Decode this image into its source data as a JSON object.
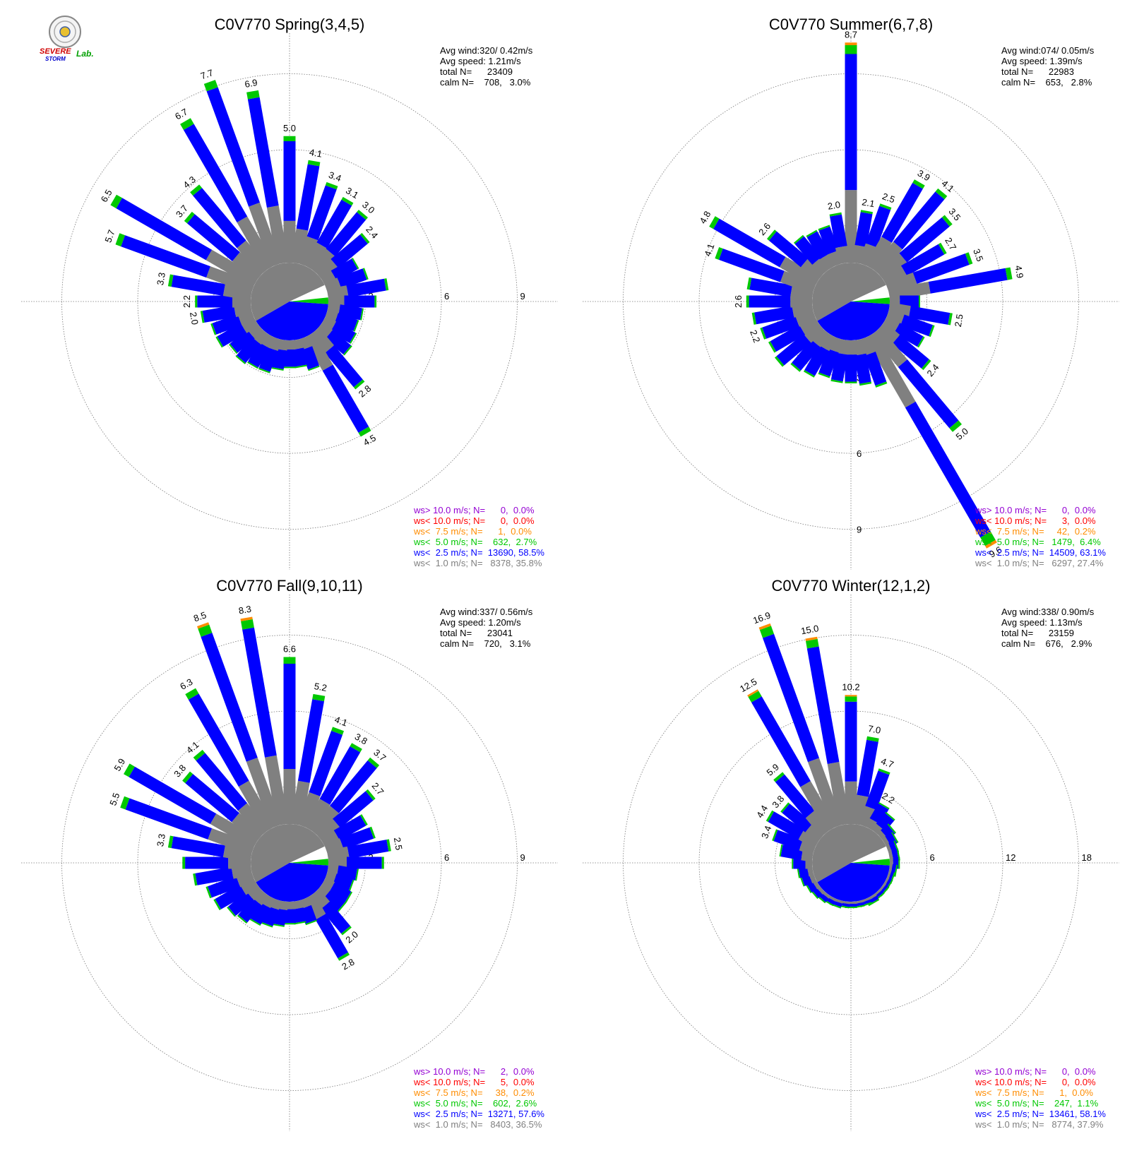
{
  "logo": {
    "line1": "SEVERE",
    "line2": "STORM",
    "line3": "Lab."
  },
  "colors": {
    "gray": "#808080",
    "blue": "#0000ff",
    "green": "#00c800",
    "orange": "#ff8c00",
    "red": "#ff0000",
    "purple": "#9400d3",
    "grid": "#777777"
  },
  "chart_data": [
    {
      "type": "polar-bar",
      "title": "C0V770 Spring(3,4,5)",
      "stats": [
        "Avg wind:320/ 0.42m/s",
        "Avg speed: 1.21m/s",
        "total N=      23409",
        "calm N=    708,   3.0%"
      ],
      "rings": [
        "3",
        "6",
        "9"
      ],
      "rmax": 9,
      "ring_label_side": "east",
      "sectors": 36,
      "totals": [
        5.0,
        4.1,
        3.4,
        3.1,
        3.0,
        2.4,
        1.5,
        1.7,
        2.4,
        1.9,
        1.4,
        1.3,
        1.4,
        1.5,
        2.8,
        4.5,
        1.3,
        1.1,
        1.1,
        1.2,
        1.4,
        1.4,
        1.5,
        1.4,
        1.7,
        1.7,
        2.0,
        2.2,
        3.3,
        5.7,
        6.5,
        3.7,
        4.3,
        6.7,
        7.7,
        6.9
      ],
      "labeled_sectors": [
        0,
        1,
        2,
        3,
        4,
        5,
        14,
        15,
        26,
        27,
        28,
        29,
        30,
        31,
        32,
        33,
        34,
        35
      ],
      "legend": [
        {
          "text": "ws> 10.0 m/s; N=      0,  0.0%",
          "color": "#9400d3"
        },
        {
          "text": "ws< 10.0 m/s; N=      0,  0.0%",
          "color": "#ff0000"
        },
        {
          "text": "ws<  7.5 m/s; N=      1,  0.0%",
          "color": "#ff8c00"
        },
        {
          "text": "ws<  5.0 m/s; N=    632,  2.7%",
          "color": "#00c800"
        },
        {
          "text": "ws<  2.5 m/s; N=  13690, 58.5%",
          "color": "#0000ff"
        },
        {
          "text": "ws<  1.0 m/s; N=   8378, 35.8%",
          "color": "#808080"
        }
      ]
    },
    {
      "type": "polar-bar",
      "title": "C0V770 Summer(6,7,8)",
      "stats": [
        "Avg wind:074/ 0.05m/s",
        "Avg speed: 1.39m/s",
        "total N=      22983",
        "calm N=    653,   2.8%"
      ],
      "rings": [
        "3",
        "6",
        "9"
      ],
      "rmax": 9,
      "ring_label_side": "south",
      "sectors": 36,
      "totals": [
        8.7,
        2.1,
        2.5,
        3.9,
        4.1,
        3.5,
        2.7,
        3.5,
        4.9,
        1.2,
        2.5,
        1.9,
        1.7,
        2.4,
        5.0,
        9.6,
        2.0,
        1.8,
        1.7,
        1.7,
        1.6,
        1.8,
        1.9,
        2.2,
        2.1,
        2.2,
        2.4,
        2.6,
        2.6,
        4.1,
        4.8,
        2.6,
        1.7,
        1.6,
        1.6,
        2.0
      ],
      "labeled_sectors": [
        0,
        1,
        2,
        3,
        4,
        5,
        6,
        7,
        8,
        10,
        13,
        14,
        15,
        25,
        27,
        29,
        30,
        31,
        35
      ],
      "legend": [
        {
          "text": "ws> 10.0 m/s; N=      0,  0.0%",
          "color": "#9400d3"
        },
        {
          "text": "ws< 10.0 m/s; N=      3,  0.0%",
          "color": "#ff0000"
        },
        {
          "text": "ws<  7.5 m/s; N=     42,  0.2%",
          "color": "#ff8c00"
        },
        {
          "text": "ws<  5.0 m/s; N=   1479,  6.4%",
          "color": "#00c800"
        },
        {
          "text": "ws<  2.5 m/s; N=  14509, 63.1%",
          "color": "#0000ff"
        },
        {
          "text": "ws<  1.0 m/s; N=   6297, 27.4%",
          "color": "#808080"
        }
      ]
    },
    {
      "type": "polar-bar",
      "title": "C0V770 Fall(9,10,11)",
      "stats": [
        "Avg wind:337/ 0.56m/s",
        "Avg speed: 1.20m/s",
        "total N=      23041",
        "calm N=    720,   3.1%"
      ],
      "rings": [
        "3",
        "6",
        "9"
      ],
      "rmax": 9,
      "ring_label_side": "east",
      "sectors": 36,
      "totals": [
        6.6,
        5.2,
        4.1,
        3.8,
        3.7,
        2.7,
        1.9,
        2.0,
        2.5,
        2.2,
        1.2,
        1.1,
        1.2,
        1.2,
        2.0,
        2.8,
        1.0,
        0.9,
        0.9,
        1.0,
        1.1,
        1.2,
        1.4,
        1.5,
        1.8,
        1.9,
        2.3,
        2.7,
        3.3,
        5.5,
        5.9,
        3.8,
        4.1,
        6.3,
        8.5,
        8.3
      ],
      "labeled_sectors": [
        0,
        1,
        2,
        3,
        4,
        5,
        8,
        14,
        15,
        28,
        29,
        30,
        31,
        32,
        33,
        34,
        35
      ],
      "legend": [
        {
          "text": "ws> 10.0 m/s; N=      2,  0.0%",
          "color": "#9400d3"
        },
        {
          "text": "ws< 10.0 m/s; N=      5,  0.0%",
          "color": "#ff0000"
        },
        {
          "text": "ws<  7.5 m/s; N=     38,  0.2%",
          "color": "#ff8c00"
        },
        {
          "text": "ws<  5.0 m/s; N=    602,  2.6%",
          "color": "#00c800"
        },
        {
          "text": "ws<  2.5 m/s; N=  13271, 57.6%",
          "color": "#0000ff"
        },
        {
          "text": "ws<  1.0 m/s; N=   8403, 36.5%",
          "color": "#808080"
        }
      ]
    },
    {
      "type": "polar-bar",
      "title": "C0V770 Winter(12,1,2)",
      "stats": [
        "Avg wind:338/ 0.90m/s",
        "Avg speed: 1.13m/s",
        "total N=      23159",
        "calm N=    676,   2.9%"
      ],
      "rings": [
        "6",
        "12",
        "18"
      ],
      "rmax": 18,
      "ring_label_side": "east",
      "sectors": 36,
      "totals": [
        10.2,
        7.0,
        4.7,
        2.2,
        1.8,
        1.2,
        1.0,
        0.8,
        0.8,
        0.8,
        0.6,
        0.5,
        0.5,
        0.5,
        0.5,
        0.6,
        0.5,
        0.5,
        0.5,
        0.5,
        0.6,
        0.6,
        0.7,
        0.8,
        0.9,
        1.1,
        1.2,
        1.6,
        2.6,
        3.4,
        4.4,
        3.8,
        5.9,
        12.5,
        16.9,
        15.0
      ],
      "labeled_sectors": [
        0,
        1,
        2,
        3,
        29,
        30,
        31,
        32,
        33,
        34,
        35
      ],
      "legend": [
        {
          "text": "ws> 10.0 m/s; N=      0,  0.0%",
          "color": "#9400d3"
        },
        {
          "text": "ws< 10.0 m/s; N=      0,  0.0%",
          "color": "#ff0000"
        },
        {
          "text": "ws<  7.5 m/s; N=      1,  0.0%",
          "color": "#ff8c00"
        },
        {
          "text": "ws<  5.0 m/s; N=    247,  1.1%",
          "color": "#00c800"
        },
        {
          "text": "ws<  2.5 m/s; N=  13461, 58.1%",
          "color": "#0000ff"
        },
        {
          "text": "ws<  1.0 m/s; N=   8774, 37.9%",
          "color": "#808080"
        }
      ]
    }
  ]
}
